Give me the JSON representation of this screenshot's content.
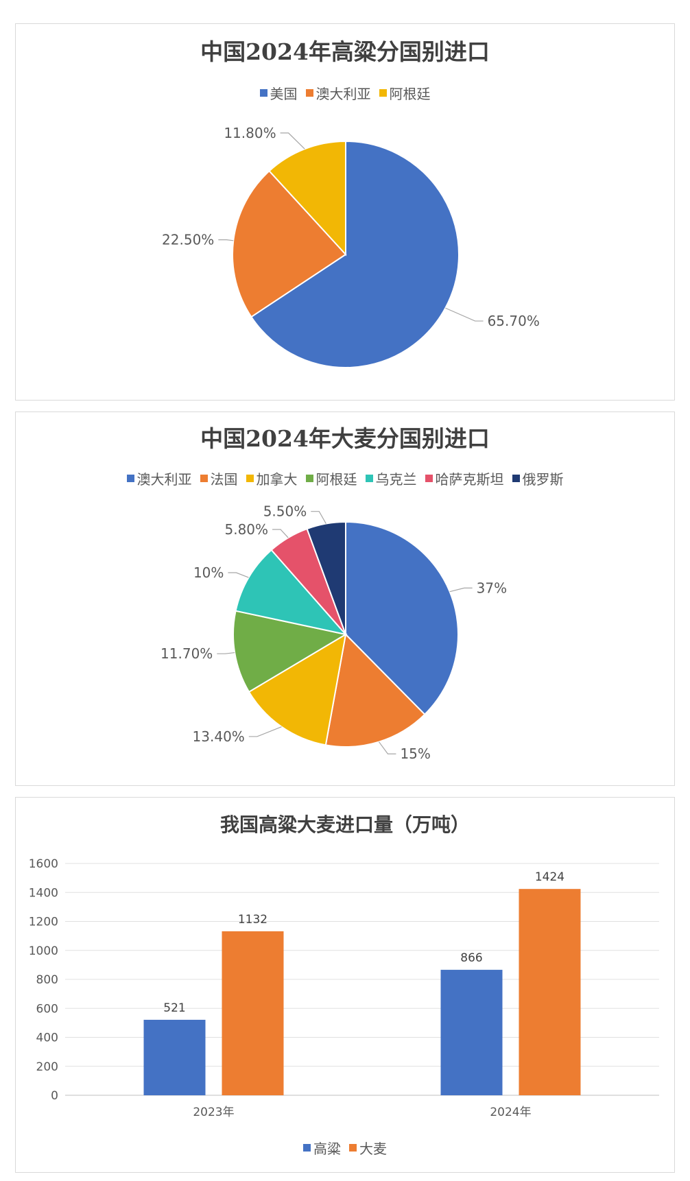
{
  "chart_data": [
    {
      "type": "pie",
      "title": "中国2024年高粱分国别进口",
      "categories": [
        "美国",
        "澳大利亚",
        "阿根廷"
      ],
      "values": [
        65.7,
        22.5,
        11.8
      ],
      "labels": [
        "65.70%",
        "22.50%",
        "11.80%"
      ],
      "colors": [
        "#4472C4",
        "#ED7D31",
        "#F2B705"
      ],
      "legend_position": "top"
    },
    {
      "type": "pie",
      "title": "中国2024年大麦分国别进口",
      "categories": [
        "澳大利亚",
        "法国",
        "加拿大",
        "阿根廷",
        "乌克兰",
        "哈萨克斯坦",
        "俄罗斯"
      ],
      "values": [
        37,
        15,
        13.4,
        11.7,
        10,
        5.8,
        5.5
      ],
      "labels": [
        "37%",
        "15%",
        "13.40%",
        "11.70%",
        "10%",
        "5.80%",
        "5.50%"
      ],
      "colors": [
        "#4472C4",
        "#ED7D31",
        "#F2B705",
        "#70AD47",
        "#2EC4B6",
        "#E5526A",
        "#1F3A73"
      ],
      "legend_position": "top"
    },
    {
      "type": "bar",
      "title": "我国高粱大麦进口量（万吨）",
      "categories": [
        "2023年",
        "2024年"
      ],
      "series": [
        {
          "name": "高粱",
          "values": [
            521,
            866
          ],
          "color": "#4472C4"
        },
        {
          "name": "大麦",
          "values": [
            1132,
            1424
          ],
          "color": "#ED7D31"
        }
      ],
      "ylim": [
        0,
        1600
      ],
      "yticks": [
        0,
        200,
        400,
        600,
        800,
        1000,
        1200,
        1400,
        1600
      ],
      "grid": true,
      "legend_position": "bottom"
    }
  ]
}
